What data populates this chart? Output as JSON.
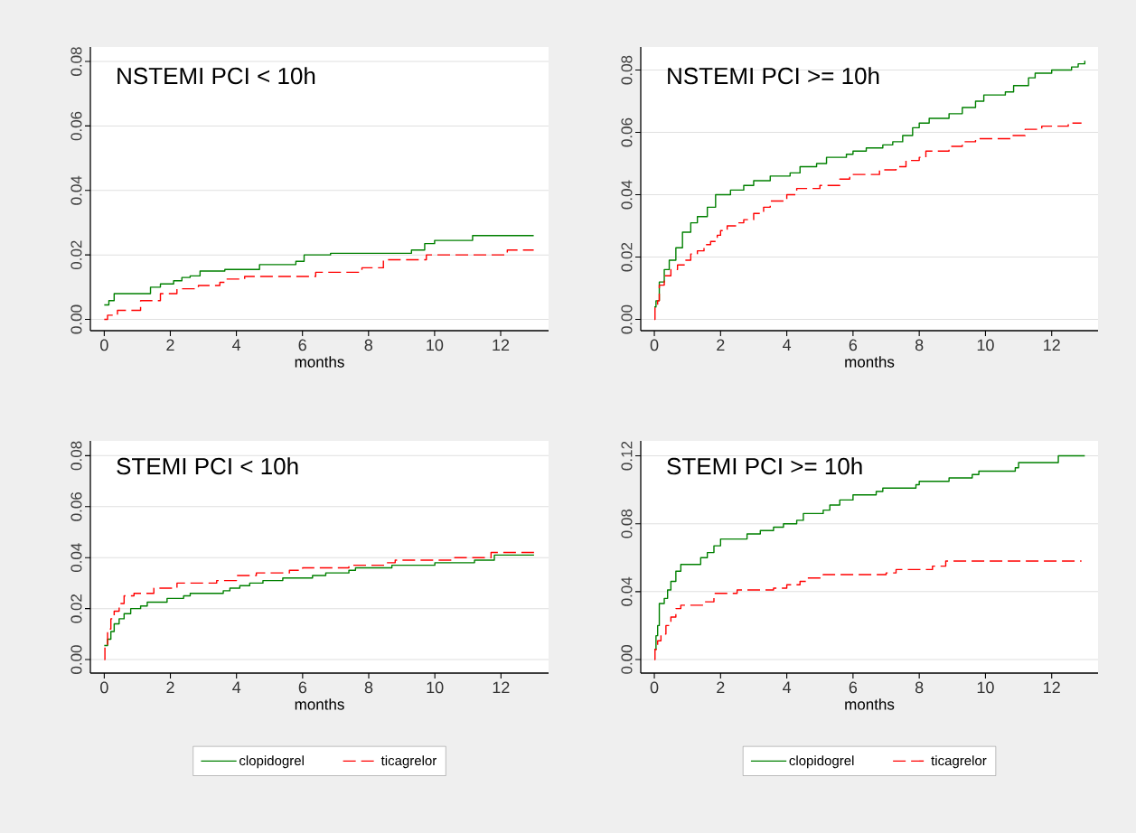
{
  "chart_data": [
    {
      "type": "step",
      "title": "NSTEMI PCI < 10h",
      "xlabel": "months",
      "xlim": [
        -0.42,
        13.45
      ],
      "ylim": [
        -0.0035,
        0.0845
      ],
      "xticks": [
        0,
        2,
        4,
        6,
        8,
        10,
        12
      ],
      "yticks": [
        {
          "value": 0,
          "label": "0.00"
        },
        {
          "value": 0.02,
          "label": "0.02"
        },
        {
          "value": 0.04,
          "label": "0.04"
        },
        {
          "value": 0.06,
          "label": "0.06"
        },
        {
          "value": 0.08,
          "label": "0.08"
        }
      ],
      "grid": "y",
      "legend": false,
      "series": [
        {
          "color": "#008000",
          "line_style": "solid",
          "x": [
            0,
            0.14,
            0.3,
            1.4,
            1.7,
            2.1,
            2.35,
            2.6,
            2.9,
            3.65,
            4.7,
            5.8,
            6.05,
            6.85,
            9.3,
            9.7,
            10.0,
            11.15,
            13
          ],
          "values": [
            0.0045,
            0.0058,
            0.008,
            0.01,
            0.011,
            0.012,
            0.013,
            0.0135,
            0.015,
            0.0155,
            0.017,
            0.018,
            0.02,
            0.0205,
            0.0215,
            0.0235,
            0.0245,
            0.026,
            0.026
          ]
        },
        {
          "color": "#ff0000",
          "line_style": "dashed",
          "x": [
            0,
            0.1,
            0.4,
            1.1,
            1.7,
            2.2,
            2.85,
            3.5,
            3.7,
            4.25,
            6.4,
            7.8,
            8.45,
            9.75,
            12.2,
            13
          ],
          "values": [
            0,
            0.0013,
            0.0028,
            0.0058,
            0.008,
            0.0095,
            0.0105,
            0.0115,
            0.0125,
            0.0133,
            0.0146,
            0.016,
            0.0185,
            0.02,
            0.0215,
            0.0215
          ]
        }
      ]
    },
    {
      "type": "step",
      "title": "NSTEMI PCI >= 10h",
      "xlabel": "months",
      "xlim": [
        -0.41,
        13.4
      ],
      "ylim": [
        -0.0036,
        0.0874
      ],
      "xticks": [
        0,
        2,
        4,
        6,
        8,
        10,
        12
      ],
      "yticks": [
        {
          "value": 0,
          "label": "0.00"
        },
        {
          "value": 0.02,
          "label": "0.02"
        },
        {
          "value": 0.04,
          "label": "0.04"
        },
        {
          "value": 0.06,
          "label": "0.06"
        },
        {
          "value": 0.08,
          "label": "0.08"
        }
      ],
      "grid": "y",
      "legend": false,
      "series": [
        {
          "color": "#008000",
          "line_style": "solid",
          "x": [
            0,
            0.05,
            0.15,
            0.3,
            0.45,
            0.65,
            0.85,
            1.1,
            1.3,
            1.6,
            1.85,
            2.3,
            2.7,
            3.0,
            3.5,
            4.1,
            4.4,
            4.9,
            5.2,
            5.8,
            6.0,
            6.4,
            6.9,
            7.2,
            7.5,
            7.8,
            8.0,
            8.3,
            8.9,
            9.3,
            9.7,
            9.95,
            10.6,
            10.85,
            11.3,
            11.5,
            12.0,
            12.6,
            12.8,
            13
          ],
          "values": [
            0.004,
            0.006,
            0.012,
            0.016,
            0.019,
            0.023,
            0.028,
            0.031,
            0.033,
            0.036,
            0.04,
            0.0415,
            0.043,
            0.0445,
            0.046,
            0.047,
            0.049,
            0.05,
            0.052,
            0.053,
            0.054,
            0.055,
            0.056,
            0.057,
            0.059,
            0.0615,
            0.063,
            0.0645,
            0.066,
            0.068,
            0.07,
            0.072,
            0.073,
            0.075,
            0.0775,
            0.079,
            0.08,
            0.081,
            0.082,
            0.083
          ]
        },
        {
          "color": "#ff0000",
          "line_style": "dashed",
          "x": [
            0,
            0.02,
            0.1,
            0.15,
            0.3,
            0.5,
            0.7,
            0.95,
            1.1,
            1.3,
            1.5,
            1.7,
            1.9,
            2.0,
            2.2,
            2.5,
            2.7,
            3.0,
            3.3,
            3.5,
            4.0,
            4.3,
            5.0,
            5.6,
            5.9,
            6.8,
            7.3,
            7.6,
            8.0,
            8.2,
            8.9,
            9.3,
            9.7,
            10.8,
            11.2,
            11.7,
            12.5,
            12.9
          ],
          "values": [
            0,
            0.004,
            0.006,
            0.011,
            0.014,
            0.016,
            0.0175,
            0.019,
            0.021,
            0.022,
            0.024,
            0.025,
            0.027,
            0.0285,
            0.03,
            0.031,
            0.032,
            0.034,
            0.036,
            0.038,
            0.04,
            0.042,
            0.043,
            0.045,
            0.0465,
            0.048,
            0.049,
            0.051,
            0.052,
            0.054,
            0.0555,
            0.057,
            0.058,
            0.059,
            0.061,
            0.062,
            0.063,
            0.063
          ]
        }
      ]
    },
    {
      "type": "step",
      "title": "STEMI PCI < 10h",
      "xlabel": "months",
      "xlim": [
        -0.42,
        13.44
      ],
      "ylim": [
        -0.0053,
        0.0858
      ],
      "xticks": [
        0,
        2,
        4,
        6,
        8,
        10,
        12
      ],
      "yticks": [
        {
          "value": 0,
          "label": "0.00"
        },
        {
          "value": 0.02,
          "label": "0.02"
        },
        {
          "value": 0.04,
          "label": "0.04"
        },
        {
          "value": 0.06,
          "label": "0.06"
        },
        {
          "value": 0.08,
          "label": "0.08"
        }
      ],
      "grid": "y",
      "legend": "bottom",
      "series": [
        {
          "name": "clopidogrel",
          "color": "#008000",
          "line_style": "solid",
          "x": [
            0,
            0.1,
            0.2,
            0.3,
            0.45,
            0.6,
            0.8,
            1.1,
            1.3,
            1.9,
            2.4,
            2.6,
            3.6,
            3.8,
            4.1,
            4.4,
            4.8,
            5.4,
            6.3,
            6.7,
            7.4,
            7.6,
            8.7,
            10.0,
            11.2,
            11.8,
            13
          ],
          "values": [
            0.0055,
            0.008,
            0.011,
            0.014,
            0.016,
            0.018,
            0.02,
            0.021,
            0.0225,
            0.024,
            0.025,
            0.026,
            0.027,
            0.028,
            0.029,
            0.03,
            0.031,
            0.032,
            0.033,
            0.034,
            0.035,
            0.036,
            0.037,
            0.038,
            0.039,
            0.041,
            0.041
          ]
        },
        {
          "name": "ticagrelor",
          "color": "#ff0000",
          "line_style": "dashed",
          "x": [
            0,
            0.02,
            0.1,
            0.2,
            0.3,
            0.45,
            0.6,
            0.9,
            1.5,
            2.2,
            3.4,
            4.0,
            4.6,
            5.6,
            6.0,
            7.4,
            8.5,
            8.8,
            10.6,
            11.7,
            13
          ],
          "values": [
            0,
            0.005,
            0.012,
            0.016,
            0.019,
            0.022,
            0.025,
            0.026,
            0.028,
            0.03,
            0.031,
            0.033,
            0.034,
            0.035,
            0.036,
            0.037,
            0.038,
            0.039,
            0.04,
            0.042,
            0.042
          ]
        }
      ]
    },
    {
      "type": "step",
      "title": "STEMI PCI >= 10h",
      "xlabel": "months",
      "xlim": [
        -0.41,
        13.4
      ],
      "ylim": [
        -0.008,
        0.1288
      ],
      "xticks": [
        0,
        2,
        4,
        6,
        8,
        10,
        12
      ],
      "yticks": [
        {
          "value": 0,
          "label": "0.00"
        },
        {
          "value": 0.04,
          "label": "0.04"
        },
        {
          "value": 0.08,
          "label": "0.08"
        },
        {
          "value": 0.12,
          "label": "0.12"
        }
      ],
      "grid": "y",
      "legend": "bottom",
      "series": [
        {
          "name": "clopidogrel",
          "color": "#008000",
          "line_style": "solid",
          "x": [
            0,
            0.05,
            0.1,
            0.15,
            0.3,
            0.4,
            0.5,
            0.65,
            0.8,
            1.4,
            1.6,
            1.8,
            2.0,
            2.8,
            3.2,
            3.6,
            3.9,
            4.3,
            4.5,
            5.1,
            5.3,
            5.6,
            6.0,
            6.7,
            6.9,
            7.9,
            8.0,
            8.9,
            9.6,
            9.8,
            10.9,
            11.0,
            12.2,
            13
          ],
          "values": [
            0.006,
            0.014,
            0.02,
            0.033,
            0.036,
            0.041,
            0.046,
            0.052,
            0.056,
            0.06,
            0.063,
            0.067,
            0.071,
            0.074,
            0.076,
            0.078,
            0.08,
            0.082,
            0.086,
            0.088,
            0.091,
            0.094,
            0.097,
            0.099,
            0.101,
            0.103,
            0.105,
            0.107,
            0.109,
            0.111,
            0.113,
            0.116,
            0.12,
            0.12
          ]
        },
        {
          "name": "ticagrelor",
          "color": "#ff0000",
          "line_style": "dashed",
          "x": [
            0,
            0.02,
            0.1,
            0.2,
            0.35,
            0.5,
            0.65,
            0.8,
            1.5,
            1.8,
            2.5,
            3.6,
            4.0,
            4.4,
            4.6,
            5.1,
            7.0,
            7.3,
            8.4,
            8.8,
            12.9
          ],
          "values": [
            0,
            0.006,
            0.011,
            0.015,
            0.02,
            0.025,
            0.03,
            0.032,
            0.034,
            0.039,
            0.041,
            0.042,
            0.044,
            0.046,
            0.048,
            0.05,
            0.051,
            0.053,
            0.055,
            0.058,
            0.058
          ]
        }
      ]
    }
  ]
}
